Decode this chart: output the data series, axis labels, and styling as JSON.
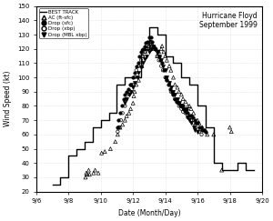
{
  "title": "Hurricane Floyd\nSeptember 1999",
  "xlabel": "Date (Month/Day)",
  "ylabel": "Wind Speed (kt)",
  "xlim": [
    6,
    20
  ],
  "ylim": [
    20,
    150
  ],
  "yticks": [
    20,
    30,
    40,
    50,
    60,
    70,
    80,
    90,
    100,
    110,
    120,
    130,
    140,
    150
  ],
  "xticks": [
    6,
    8,
    10,
    12,
    14,
    16,
    18,
    20
  ],
  "xticklabels": [
    "9/6",
    "9/8",
    "9/10",
    "9/12",
    "9/14",
    "9/16",
    "9/18",
    "9/20"
  ],
  "best_track_x": [
    7.0,
    7.5,
    7.5,
    8.0,
    8.0,
    8.5,
    8.5,
    9.0,
    9.0,
    9.5,
    9.5,
    10.0,
    10.0,
    10.5,
    10.5,
    11.0,
    11.0,
    11.5,
    11.5,
    11.75,
    11.75,
    12.0,
    12.0,
    12.5,
    12.5,
    13.0,
    13.0,
    13.25,
    13.25,
    13.5,
    13.5,
    14.0,
    14.0,
    14.5,
    14.5,
    15.0,
    15.0,
    15.25,
    15.25,
    15.5,
    15.5,
    16.0,
    16.0,
    16.5,
    16.5,
    17.0,
    17.0,
    17.5,
    17.5,
    18.0,
    18.0,
    18.5,
    18.5,
    19.0,
    19.0,
    19.5
  ],
  "best_track_y": [
    25,
    25,
    30,
    30,
    45,
    45,
    50,
    50,
    55,
    55,
    65,
    65,
    70,
    70,
    75,
    75,
    95,
    95,
    100,
    100,
    100,
    100,
    100,
    100,
    120,
    120,
    135,
    135,
    135,
    135,
    130,
    130,
    115,
    115,
    110,
    110,
    100,
    100,
    100,
    100,
    95,
    95,
    80,
    80,
    65,
    65,
    40,
    40,
    35,
    35,
    35,
    35,
    40,
    40,
    35,
    35
  ],
  "ac_x": [
    9.05,
    9.1,
    9.15,
    9.25,
    9.3,
    9.55,
    9.65,
    9.85,
    10.05,
    10.25,
    10.6,
    10.9,
    11.05,
    11.1,
    11.2,
    11.35,
    11.5,
    11.6,
    11.75,
    11.85,
    12.0,
    12.05,
    12.1,
    12.2,
    12.35,
    12.55,
    12.6,
    12.75,
    12.85,
    12.95,
    13.05,
    13.1,
    13.2,
    13.3,
    13.5,
    13.6,
    13.75,
    13.8,
    13.9,
    14.0,
    14.1,
    14.25,
    14.35,
    14.5,
    14.6,
    14.75,
    14.85,
    15.0,
    15.1,
    15.25,
    15.4,
    15.5,
    15.6,
    15.75,
    16.0,
    16.1,
    16.3,
    16.5,
    16.6,
    17.0,
    17.5,
    18.0,
    18.1
  ],
  "ac_y": [
    30,
    33,
    32,
    35,
    32,
    33,
    35,
    33,
    47,
    48,
    50,
    55,
    60,
    65,
    65,
    67,
    70,
    73,
    75,
    78,
    82,
    87,
    90,
    95,
    98,
    108,
    115,
    118,
    120,
    122,
    125,
    125,
    123,
    120,
    115,
    118,
    120,
    122,
    118,
    115,
    112,
    108,
    105,
    100,
    95,
    93,
    90,
    88,
    85,
    83,
    80,
    80,
    78,
    75,
    70,
    68,
    65,
    63,
    60,
    60,
    35,
    65,
    62
  ],
  "drop_sfc_x": [
    11.05,
    11.1,
    11.2,
    11.3,
    11.4,
    11.5,
    11.6,
    11.7,
    11.8,
    11.9,
    12.0,
    12.1,
    12.2,
    12.3,
    12.4,
    12.5,
    12.6,
    12.7,
    12.8,
    12.9,
    13.0,
    13.1,
    13.2,
    13.3,
    13.4,
    13.5,
    13.6,
    13.7,
    13.8,
    13.9,
    14.0,
    14.1,
    14.2,
    14.3,
    14.4,
    14.5,
    14.6,
    14.7,
    14.8,
    14.9,
    15.0,
    15.1,
    15.2,
    15.3,
    15.4,
    15.5,
    15.6,
    15.7,
    15.8,
    15.9,
    16.0,
    16.1,
    16.2,
    16.3,
    16.4,
    16.5
  ],
  "drop_sfc_y": [
    65,
    70,
    75,
    80,
    85,
    88,
    90,
    92,
    95,
    95,
    100,
    103,
    108,
    110,
    115,
    118,
    120,
    122,
    124,
    125,
    128,
    128,
    125,
    122,
    120,
    118,
    115,
    112,
    110,
    105,
    100,
    98,
    95,
    92,
    90,
    88,
    85,
    83,
    82,
    80,
    80,
    80,
    78,
    78,
    75,
    73,
    73,
    72,
    70,
    68,
    68,
    65,
    65,
    63,
    63,
    62
  ],
  "drop_xbp_x": [
    11.05,
    11.15,
    11.25,
    11.35,
    11.5,
    11.6,
    11.75,
    11.85,
    12.0,
    12.1,
    12.2,
    12.35,
    12.5,
    12.6,
    12.75,
    12.85,
    13.0,
    13.1,
    13.2,
    13.35,
    13.5,
    13.6,
    13.75,
    13.85,
    14.0,
    14.1,
    14.25,
    14.35,
    14.5,
    14.6,
    14.75,
    14.85,
    15.0,
    15.1,
    15.25,
    15.4,
    15.5,
    15.6,
    15.75,
    15.85,
    16.0,
    16.1,
    16.25
  ],
  "drop_xbp_y": [
    62,
    65,
    70,
    75,
    80,
    85,
    88,
    90,
    95,
    100,
    105,
    108,
    112,
    115,
    118,
    120,
    122,
    125,
    122,
    120,
    115,
    112,
    108,
    105,
    100,
    98,
    95,
    90,
    88,
    85,
    83,
    80,
    78,
    76,
    75,
    72,
    72,
    70,
    68,
    66,
    64,
    62,
    60
  ],
  "drop_mbl_x": [
    11.5,
    11.6,
    11.75,
    11.85,
    12.0,
    12.1,
    12.25,
    12.35,
    12.5,
    12.6,
    12.75,
    12.85,
    13.0,
    13.1,
    13.25,
    13.35,
    13.5,
    13.6,
    13.75,
    13.85,
    14.0,
    14.1,
    14.25,
    14.35,
    14.5,
    14.6,
    14.75,
    14.85,
    15.0,
    15.1,
    15.25,
    15.4,
    15.5,
    15.6,
    15.75,
    15.85,
    16.0
  ],
  "drop_mbl_y": [
    82,
    85,
    88,
    90,
    93,
    96,
    100,
    103,
    107,
    110,
    113,
    115,
    118,
    120,
    122,
    120,
    118,
    115,
    112,
    108,
    105,
    100,
    96,
    93,
    90,
    88,
    85,
    82,
    80,
    78,
    75,
    72,
    70,
    68,
    65,
    63,
    62
  ],
  "bg_color": "#ffffff",
  "line_color": "#000000",
  "grid_color": "#cccccc"
}
